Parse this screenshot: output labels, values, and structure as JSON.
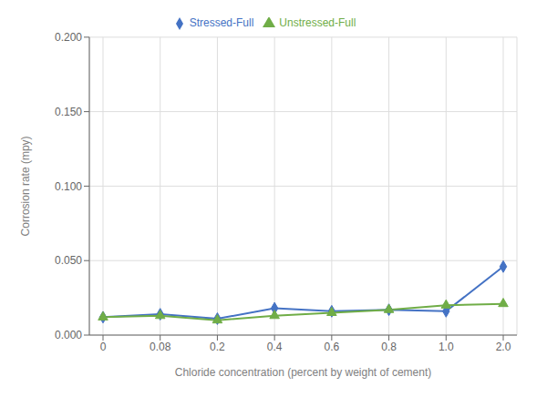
{
  "chart_data": {
    "type": "line",
    "categories": [
      "0",
      "0.08",
      "0.2",
      "0.4",
      "0.6",
      "0.8",
      "1.0",
      "2.0"
    ],
    "series": [
      {
        "name": "Stressed-Full",
        "color": "#4472C4",
        "marker": "diamond",
        "line_style": "solid",
        "values": [
          0.012,
          0.014,
          0.011,
          0.018,
          0.016,
          0.017,
          0.016,
          0.046
        ]
      },
      {
        "name": "Unstressed-Full",
        "color": "#70AD47",
        "marker": "triangle",
        "line_style": "solid",
        "values": [
          0.012,
          0.013,
          0.01,
          0.013,
          0.015,
          0.017,
          0.02,
          0.021
        ]
      }
    ],
    "xlabel": "Chloride concentration (percent by weight of cement)",
    "ylabel": "Corrosion rate (mpy)",
    "ylim": [
      0.0,
      0.2
    ],
    "yticks": [
      {
        "value": 0.0,
        "label": "0.000"
      },
      {
        "value": 0.05,
        "label": "0.050"
      },
      {
        "value": 0.1,
        "label": "0.100"
      },
      {
        "value": 0.15,
        "label": "0.150"
      },
      {
        "value": 0.2,
        "label": "0.200"
      }
    ],
    "grid": true,
    "legend": "top"
  }
}
